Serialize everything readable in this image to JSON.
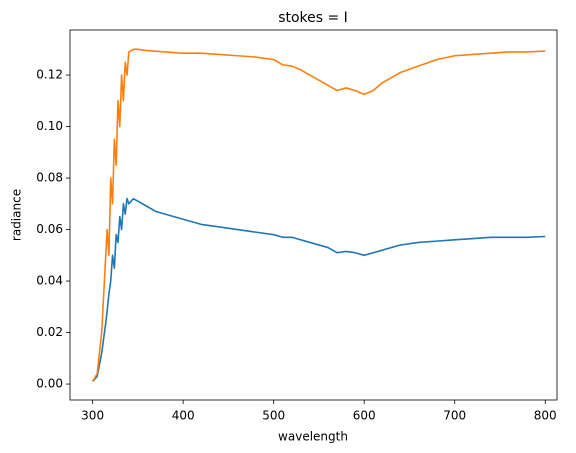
{
  "chart_data": {
    "type": "line",
    "title": "stokes = I",
    "x_label": "wavelength",
    "y_label": "radiance",
    "xlim": [
      275,
      813
    ],
    "ylim": [
      -0.0062,
      0.1375
    ],
    "xticks": [
      300,
      400,
      500,
      600,
      700,
      800
    ],
    "yticks": [
      {
        "value": 0.0,
        "label": "0.00"
      },
      {
        "value": 0.02,
        "label": "0.02"
      },
      {
        "value": 0.04,
        "label": "0.04"
      },
      {
        "value": 0.06,
        "label": "0.06"
      },
      {
        "value": 0.08,
        "label": "0.08"
      },
      {
        "value": 0.1,
        "label": "0.10"
      },
      {
        "value": 0.12,
        "label": "0.12"
      }
    ],
    "grid": false,
    "series": [
      {
        "color": "#1f77b4",
        "x": [
          300,
          305,
          310,
          315,
          318,
          320,
          322,
          324,
          326,
          328,
          330,
          332,
          334,
          336,
          338,
          340,
          345,
          350,
          360,
          370,
          380,
          400,
          420,
          440,
          460,
          480,
          500,
          510,
          520,
          540,
          560,
          570,
          580,
          590,
          600,
          610,
          620,
          640,
          660,
          680,
          700,
          720,
          740,
          760,
          780,
          800
        ],
        "values": [
          0.001,
          0.003,
          0.012,
          0.025,
          0.035,
          0.04,
          0.05,
          0.045,
          0.058,
          0.055,
          0.065,
          0.06,
          0.07,
          0.066,
          0.072,
          0.07,
          0.072,
          0.071,
          0.069,
          0.067,
          0.066,
          0.064,
          0.062,
          0.061,
          0.06,
          0.059,
          0.058,
          0.057,
          0.057,
          0.055,
          0.053,
          0.051,
          0.0515,
          0.051,
          0.05,
          0.051,
          0.052,
          0.054,
          0.055,
          0.0555,
          0.056,
          0.0565,
          0.057,
          0.057,
          0.057,
          0.0573
        ]
      },
      {
        "color": "#ff7f0e",
        "x": [
          300,
          305,
          310,
          313,
          316,
          318,
          320,
          322,
          324,
          326,
          328,
          330,
          332,
          334,
          336,
          338,
          340,
          345,
          350,
          360,
          380,
          400,
          420,
          440,
          460,
          480,
          500,
          510,
          520,
          530,
          540,
          550,
          560,
          570,
          580,
          590,
          600,
          610,
          620,
          640,
          660,
          680,
          700,
          720,
          740,
          760,
          780,
          800
        ],
        "values": [
          0.001,
          0.004,
          0.02,
          0.04,
          0.06,
          0.05,
          0.08,
          0.07,
          0.095,
          0.085,
          0.11,
          0.1,
          0.12,
          0.11,
          0.125,
          0.12,
          0.129,
          0.13,
          0.13,
          0.1295,
          0.129,
          0.1285,
          0.1285,
          0.128,
          0.1275,
          0.127,
          0.126,
          0.124,
          0.1235,
          0.122,
          0.12,
          0.118,
          0.116,
          0.114,
          0.115,
          0.114,
          0.1125,
          0.114,
          0.117,
          0.121,
          0.1235,
          0.126,
          0.1275,
          0.128,
          0.1285,
          0.129,
          0.129,
          0.1293
        ]
      }
    ]
  }
}
